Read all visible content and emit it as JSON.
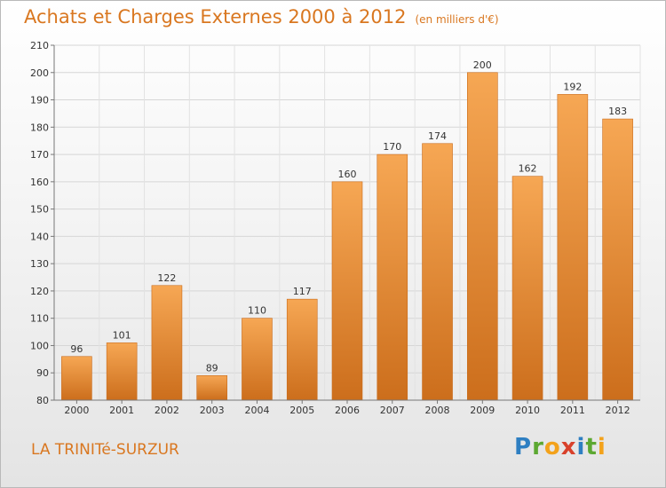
{
  "header": {
    "title": "Achats et Charges Externes 2000 à 2012",
    "unit": "(en milliers d'€)"
  },
  "footer": {
    "place": "LA TRINITé-SURZUR",
    "logo_text": "Proxiti",
    "logo_letters": [
      {
        "ch": "P",
        "color": "#2e7fc2"
      },
      {
        "ch": "r",
        "color": "#5ca832"
      },
      {
        "ch": "o",
        "color": "#f3a21b"
      },
      {
        "ch": "x",
        "color": "#d8412b"
      },
      {
        "ch": "i",
        "color": "#2e7fc2"
      },
      {
        "ch": "t",
        "color": "#5ca832"
      },
      {
        "ch": "i",
        "color": "#f3a21b"
      }
    ]
  },
  "colors": {
    "accent": "#d97720",
    "bar_light": "#f6a754",
    "bar_dark": "#cc6e1c"
  },
  "chart_data": {
    "type": "bar",
    "categories": [
      "2000",
      "2001",
      "2002",
      "2003",
      "2004",
      "2005",
      "2006",
      "2007",
      "2008",
      "2009",
      "2010",
      "2011",
      "2012"
    ],
    "values": [
      96,
      101,
      122,
      89,
      110,
      117,
      160,
      170,
      174,
      200,
      162,
      192,
      183
    ],
    "ylim": [
      80,
      210
    ],
    "yticks": [
      80,
      90,
      100,
      110,
      120,
      130,
      140,
      150,
      160,
      170,
      180,
      190,
      200,
      210
    ],
    "grid": true,
    "legend": "none"
  }
}
